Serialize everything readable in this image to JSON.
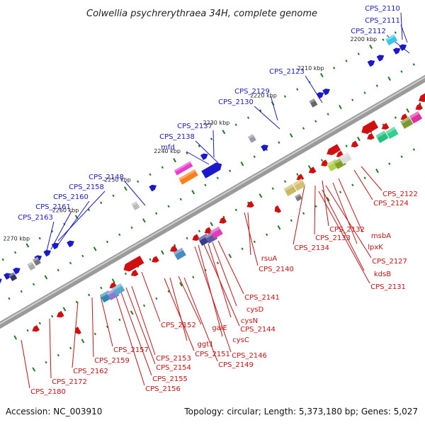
{
  "title": "Colwellia psychrerythraea 34H, complete genome",
  "footer": {
    "accession": "Accession: NC_003910",
    "summary": "Topology: circular; Length: 5,373,180 bp; Genes: 5,027"
  },
  "colors": {
    "forward_strand": "#1a1acc",
    "reverse_strand": "#d01010",
    "backbone": "#8a8a8a",
    "tick_mark": "#1f7a1f"
  },
  "kbp_labels": [
    "2200 kbp",
    "2210 kbp",
    "2220 kbp",
    "2230 kbp",
    "2240 kbp",
    "2250 kbp",
    "2260 kbp",
    "2270 kbp"
  ],
  "forward_labels": [
    "CPS_2110",
    "CPS_2111",
    "CPS_2112",
    "CPS_2123",
    "CPS_2129",
    "CPS_2130",
    "CPS_2137",
    "CPS_2138",
    "mfd",
    "CPS_2148",
    "CPS_2158",
    "CPS_2160",
    "CPS_2161",
    "CPS_2163"
  ],
  "reverse_labels": [
    "CPS_2122",
    "CPS_2124",
    "msbA",
    "CPS_2132",
    "lpxK",
    "CPS_2133",
    "CPS_2127",
    "CPS_2134",
    "kdsB",
    "CPS_2131",
    "rsuA",
    "CPS_2140",
    "CPS_2141",
    "cysD",
    "cysN",
    "CPS_2144",
    "cysC",
    "CPS_2146",
    "CPS_2152",
    "galE",
    "ggt1",
    "CPS_2151",
    "CPS_2149",
    "CPS_2153",
    "CPS_2154",
    "CPS_2155",
    "CPS_2156",
    "CPS_2157",
    "CPS_2159",
    "CPS_2162",
    "CPS_2172",
    "CPS_2180"
  ]
}
